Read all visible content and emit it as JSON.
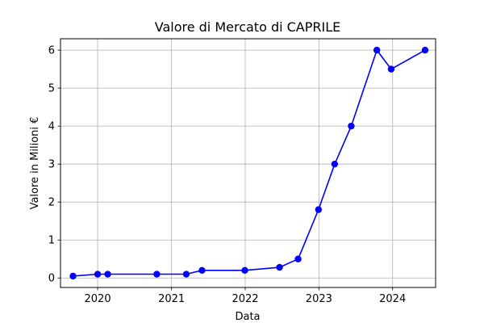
{
  "chart_data": {
    "type": "line",
    "title": "Valore di Mercato di CAPRILE",
    "xlabel": "Data",
    "ylabel": "Valore in Milioni €",
    "xlim": [
      "2019-07-01",
      "2024-08-01"
    ],
    "ylim": [
      -0.25,
      6.3
    ],
    "x_ticks": [
      "2020",
      "2021",
      "2022",
      "2023",
      "2024"
    ],
    "y_ticks": [
      0,
      1,
      2,
      3,
      4,
      5,
      6
    ],
    "grid": true,
    "series": [
      {
        "color": "#0000ff",
        "marker": "circle",
        "points": [
          {
            "x": "2019-09-01",
            "y": 0.05
          },
          {
            "x": "2020-01-01",
            "y": 0.1
          },
          {
            "x": "2020-02-20",
            "y": 0.1
          },
          {
            "x": "2020-10-20",
            "y": 0.1
          },
          {
            "x": "2021-03-15",
            "y": 0.1
          },
          {
            "x": "2021-06-01",
            "y": 0.2
          },
          {
            "x": "2021-12-30",
            "y": 0.2
          },
          {
            "x": "2022-06-20",
            "y": 0.28
          },
          {
            "x": "2022-09-20",
            "y": 0.5
          },
          {
            "x": "2022-12-30",
            "y": 1.8
          },
          {
            "x": "2023-03-20",
            "y": 3.0
          },
          {
            "x": "2023-06-10",
            "y": 4.0
          },
          {
            "x": "2023-10-15",
            "y": 6.0
          },
          {
            "x": "2023-12-25",
            "y": 5.5
          },
          {
            "x": "2024-06-10",
            "y": 6.0
          }
        ]
      }
    ]
  }
}
